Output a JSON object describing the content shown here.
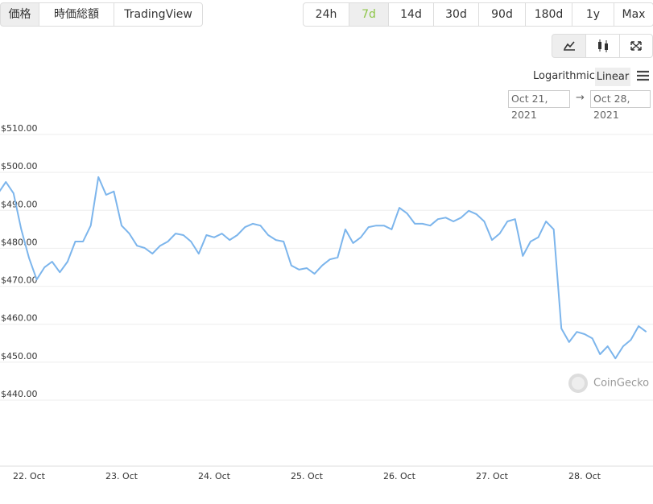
{
  "tabs": [
    "価格",
    "時価総額",
    "TradingView"
  ],
  "ranges": [
    "24h",
    "7d",
    "14d",
    "30d",
    "90d",
    "180d",
    "1y",
    "Max"
  ],
  "scale_options": [
    "Logarithmic",
    "Linear"
  ],
  "date_range": {
    "from": "Oct 21, 2021",
    "arrow": "→",
    "to": "Oct 28, 2021"
  },
  "watermark": "CoinGecko",
  "chart_data": {
    "type": "line",
    "color": "#7cb5ec",
    "grid": true,
    "categories": [
      null,
      null,
      null,
      null,
      "22. Oct",
      null,
      null,
      null,
      null,
      null,
      null,
      null,
      null,
      null,
      null,
      null,
      "23. Oct",
      null,
      null,
      null,
      null,
      null,
      null,
      null,
      null,
      null,
      null,
      null,
      "24. Oct",
      null,
      null,
      null,
      null,
      null,
      null,
      null,
      null,
      null,
      null,
      null,
      "25. Oct",
      null,
      null,
      null,
      null,
      null,
      null,
      null,
      null,
      null,
      null,
      null,
      "26. Oct",
      null,
      null,
      null,
      null,
      null,
      null,
      null,
      null,
      null,
      null,
      null,
      "27. Oct",
      null,
      null,
      null,
      null,
      null,
      null,
      null,
      null,
      null,
      null,
      null,
      "28. Oct",
      null,
      null,
      null,
      null,
      null,
      null,
      null,
      null
    ],
    "values": [
      493,
      496,
      493,
      483.5,
      476,
      470.3,
      473.5,
      475,
      472.2,
      475,
      480.3,
      480.3,
      484.5,
      497.3,
      492.6,
      493.5,
      484.5,
      482.4,
      479.2,
      478.6,
      477.1,
      479.2,
      480.3,
      482.4,
      482,
      480.3,
      477.1,
      482,
      481.4,
      482.4,
      480.7,
      482,
      484.1,
      485,
      484.5,
      482,
      480.7,
      480.3,
      474,
      472.9,
      473.3,
      471.8,
      474,
      475.6,
      476.1,
      483.5,
      479.9,
      481.4,
      484.1,
      484.5,
      484.5,
      483.5,
      489.2,
      487.7,
      485,
      485,
      484.5,
      486.2,
      486.6,
      485.6,
      486.6,
      488.4,
      487.5,
      485.6,
      480.7,
      482.4,
      485.6,
      486.2,
      476.5,
      480.3,
      481.4,
      485.6,
      483.5,
      457.4,
      453.8,
      456.5,
      455.9,
      454.8,
      450.6,
      452.7,
      449.5,
      452.7,
      454.4,
      458,
      456.5
    ],
    "ylim": [
      440,
      510
    ],
    "yticks": [
      {
        "value": 440,
        "label": "$440.00"
      },
      {
        "value": 450,
        "label": "$450.00"
      },
      {
        "value": 460,
        "label": "$460.00"
      },
      {
        "value": 470,
        "label": "$470.00"
      },
      {
        "value": 480,
        "label": "$480.00"
      },
      {
        "value": 490,
        "label": "$490.00"
      },
      {
        "value": 500,
        "label": "$500.00"
      },
      {
        "value": 510,
        "label": "$510.00"
      }
    ]
  }
}
